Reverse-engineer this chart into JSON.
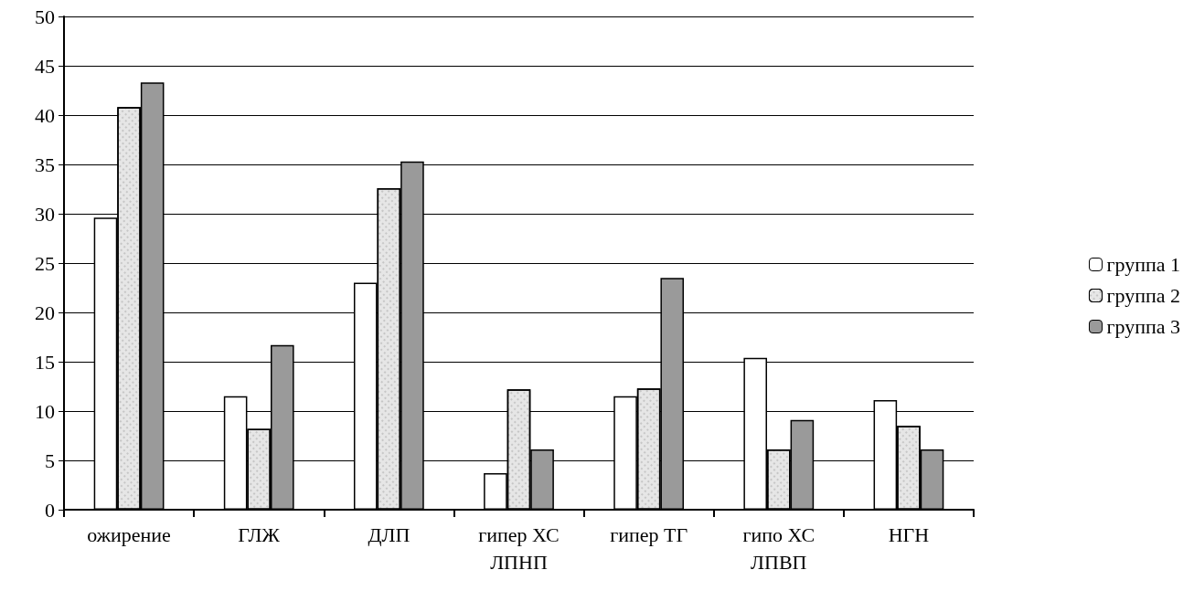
{
  "chart_data": {
    "type": "bar",
    "categories": [
      "ожирение",
      "ГЛЖ",
      "ДЛП",
      "гипер ХС ЛПНП",
      "гипер ТГ",
      "гипо ХС ЛПВП",
      "НГН"
    ],
    "series": [
      {
        "name": "группа 1",
        "color": "#ffffff",
        "values": [
          29.6,
          11.5,
          23.0,
          3.7,
          11.5,
          15.4,
          11.1
        ]
      },
      {
        "name": "группа 2",
        "color": "#e6e6e6",
        "values": [
          40.8,
          8.2,
          32.6,
          12.2,
          12.3,
          6.1,
          8.5
        ]
      },
      {
        "name": "группа 3",
        "color": "#9a9a9a",
        "values": [
          43.3,
          16.7,
          35.3,
          6.1,
          23.5,
          9.1,
          6.1
        ]
      }
    ],
    "ylim": [
      0,
      50
    ],
    "yticks": [
      0,
      5,
      10,
      15,
      20,
      25,
      30,
      35,
      40,
      45,
      50
    ],
    "grid": "y",
    "legend": "right"
  }
}
